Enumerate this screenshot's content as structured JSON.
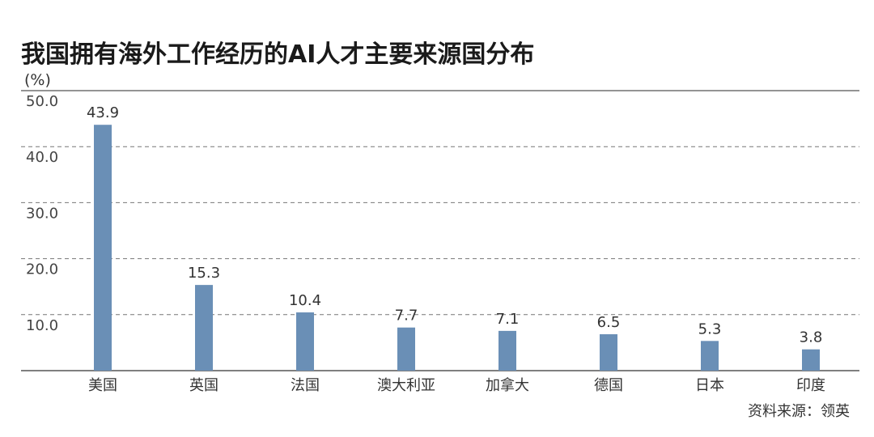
{
  "chart_data": {
    "type": "bar",
    "title": "我国拥有海外工作经历的AI人才主要来源国分布",
    "ylabel": "(%)",
    "xlabel": "",
    "categories": [
      "美国",
      "英国",
      "法国",
      "澳大利亚",
      "加拿大",
      "德国",
      "日本",
      "印度"
    ],
    "values": [
      43.9,
      15.3,
      10.4,
      7.7,
      7.1,
      6.5,
      5.3,
      3.8
    ],
    "value_labels": [
      "43.9",
      "15.3",
      "10.4",
      "7.7",
      "7.1",
      "6.5",
      "5.3",
      "3.8"
    ],
    "ylim": [
      0,
      50
    ],
    "yticks": [
      10,
      20,
      30,
      40,
      50
    ],
    "ytick_labels": [
      "10.0",
      "20.0",
      "30.0",
      "40.0",
      "50.0"
    ],
    "grid": true,
    "bar_color": "#6a8fb6",
    "source": "资料来源：领英"
  }
}
